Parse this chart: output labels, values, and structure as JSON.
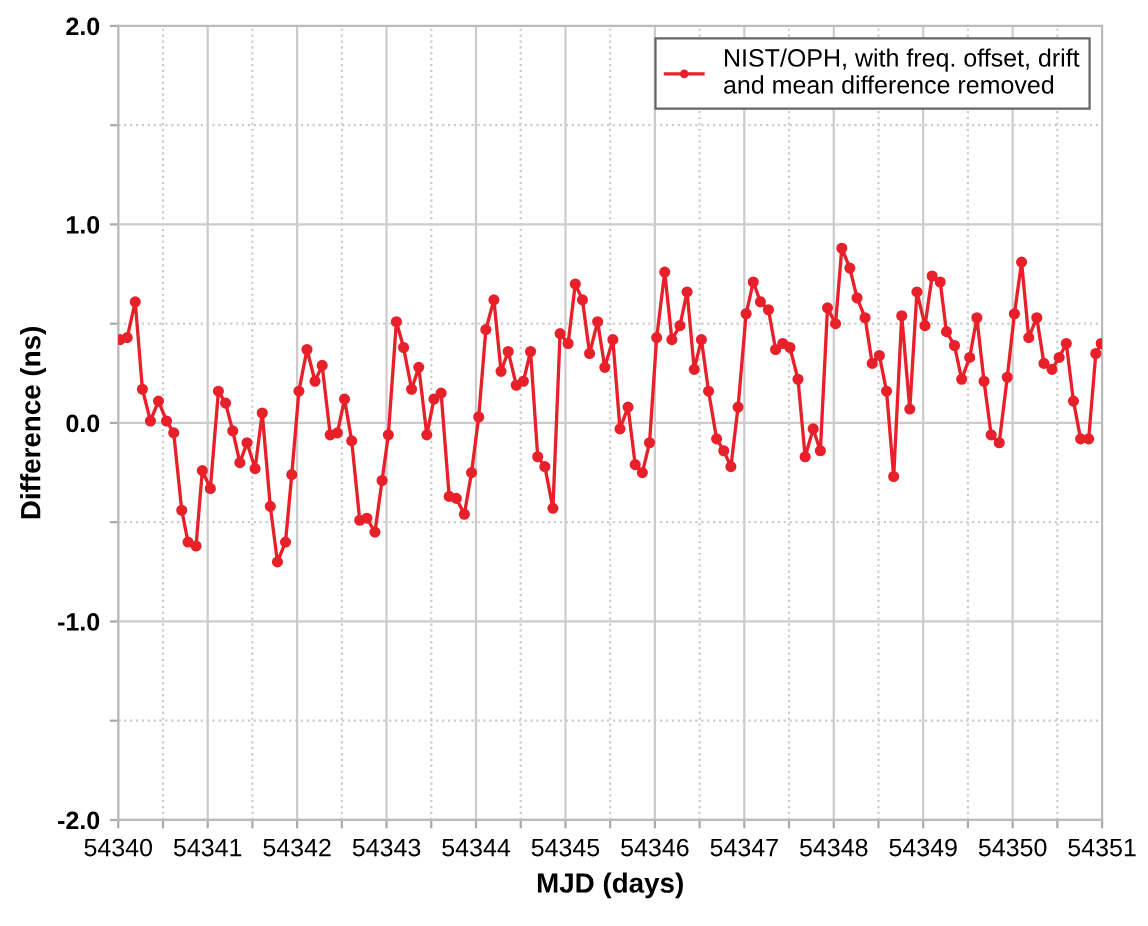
{
  "chart_data": {
    "type": "line",
    "xlabel": "MJD (days)",
    "ylabel": "Difference (ns)",
    "xlim": [
      54340,
      54351
    ],
    "ylim": [
      -2.0,
      2.0
    ],
    "xticks": [
      54340,
      {
        "value": 54340.5,
        "label": null
      },
      54341,
      {
        "value": 54341.5,
        "label": null
      },
      54342,
      {
        "value": 54342.5,
        "label": null
      },
      54343,
      {
        "value": 54343.5,
        "label": null
      },
      54344,
      {
        "value": 54344.5,
        "label": null
      },
      54345,
      {
        "value": 54345.5,
        "label": null
      },
      54346,
      {
        "value": 54346.5,
        "label": null
      },
      54347,
      {
        "value": 54347.5,
        "label": null
      },
      54348,
      {
        "value": 54348.5,
        "label": null
      },
      54349,
      {
        "value": 54349.5,
        "label": null
      },
      54350,
      {
        "value": 54350.5,
        "label": null
      },
      54351
    ],
    "yticks": [
      {
        "value": -2.0,
        "label": "-2.0"
      },
      {
        "value": -1.5,
        "label": null
      },
      {
        "value": -1.0,
        "label": "-1.0"
      },
      {
        "value": -0.5,
        "label": null
      },
      {
        "value": 0.0,
        "label": "0.0"
      },
      {
        "value": 0.5,
        "label": null
      },
      {
        "value": 1.0,
        "label": "1.0"
      },
      {
        "value": 1.5,
        "label": null
      },
      {
        "value": 2.0,
        "label": "2.0"
      }
    ],
    "grid": true,
    "legend": "top right",
    "marker": "circle",
    "line_style": "solid",
    "series": [
      {
        "name": "NIST/OPH, with freq. offset, drift\nand mean difference removed",
        "color": "#e8202a",
        "x": [
          54340.02,
          54340.1,
          54340.19,
          54340.27,
          54340.36,
          54340.45,
          54340.54,
          54340.62,
          54340.71,
          54340.78,
          54340.87,
          54340.94,
          54341.03,
          54341.12,
          54341.2,
          54341.28,
          54341.36,
          54341.44,
          54341.53,
          54341.61,
          54341.7,
          54341.78,
          54341.87,
          54341.94,
          54342.02,
          54342.11,
          54342.2,
          54342.28,
          54342.37,
          54342.45,
          54342.53,
          54342.61,
          54342.7,
          54342.78,
          54342.87,
          54342.95,
          54343.02,
          54343.11,
          54343.19,
          54343.28,
          54343.36,
          54343.45,
          54343.53,
          54343.61,
          54343.7,
          54343.78,
          54343.87,
          54343.95,
          54344.03,
          54344.11,
          54344.2,
          54344.28,
          54344.36,
          54344.45,
          54344.53,
          54344.61,
          54344.69,
          54344.77,
          54344.86,
          54344.94,
          54345.03,
          54345.11,
          54345.19,
          54345.27,
          54345.36,
          54345.44,
          54345.53,
          54345.61,
          54345.7,
          54345.78,
          54345.86,
          54345.94,
          54346.02,
          54346.11,
          54346.19,
          54346.28,
          54346.36,
          54346.44,
          54346.52,
          54346.6,
          54346.69,
          54346.77,
          54346.85,
          54346.93,
          54347.02,
          54347.1,
          54347.18,
          54347.27,
          54347.35,
          54347.43,
          54347.51,
          54347.6,
          54347.68,
          54347.77,
          54347.85,
          54347.93,
          54348.02,
          54348.09,
          54348.18,
          54348.26,
          54348.35,
          54348.43,
          54348.51,
          54348.59,
          54348.67,
          54348.76,
          54348.85,
          54348.93,
          54349.02,
          54349.1,
          54349.19,
          54349.26,
          54349.35,
          54349.43,
          54349.52,
          54349.6,
          54349.68,
          54349.76,
          54349.85,
          54349.94,
          54350.02,
          54350.1,
          54350.18,
          54350.27,
          54350.35,
          54350.44,
          54350.52,
          54350.6,
          54350.68,
          54350.76,
          54350.85,
          54350.93,
          54350.99
        ],
        "values": [
          0.42,
          0.43,
          0.61,
          0.17,
          0.01,
          0.11,
          0.01,
          -0.05,
          -0.44,
          -0.6,
          -0.62,
          -0.24,
          -0.33,
          0.16,
          0.1,
          -0.04,
          -0.2,
          -0.1,
          -0.23,
          0.05,
          -0.42,
          -0.7,
          -0.6,
          -0.26,
          0.16,
          0.37,
          0.21,
          0.29,
          -0.06,
          -0.05,
          0.12,
          -0.09,
          -0.49,
          -0.48,
          -0.55,
          -0.29,
          -0.06,
          0.51,
          0.38,
          0.17,
          0.28,
          -0.06,
          0.12,
          0.15,
          -0.37,
          -0.38,
          -0.46,
          -0.25,
          0.03,
          0.47,
          0.62,
          0.26,
          0.36,
          0.19,
          0.21,
          0.36,
          -0.17,
          -0.22,
          -0.43,
          0.45,
          0.4,
          0.7,
          0.62,
          0.35,
          0.51,
          0.28,
          0.42,
          -0.03,
          0.08,
          -0.21,
          -0.25,
          -0.1,
          0.43,
          0.76,
          0.42,
          0.49,
          0.66,
          0.27,
          0.42,
          0.16,
          -0.08,
          -0.14,
          -0.22,
          0.08,
          0.55,
          0.71,
          0.61,
          0.57,
          0.37,
          0.4,
          0.38,
          0.22,
          -0.17,
          -0.03,
          -0.14,
          0.58,
          0.5,
          0.88,
          0.78,
          0.63,
          0.53,
          0.3,
          0.34,
          0.16,
          -0.27,
          0.54,
          0.07,
          0.66,
          0.49,
          0.74,
          0.71,
          0.46,
          0.39,
          0.22,
          0.33,
          0.53,
          0.21,
          -0.06,
          -0.1,
          0.23,
          0.55,
          0.81,
          0.43,
          0.53,
          0.3,
          0.27,
          0.33,
          0.4,
          0.11,
          -0.08,
          -0.08,
          0.35,
          0.4
        ]
      }
    ]
  }
}
